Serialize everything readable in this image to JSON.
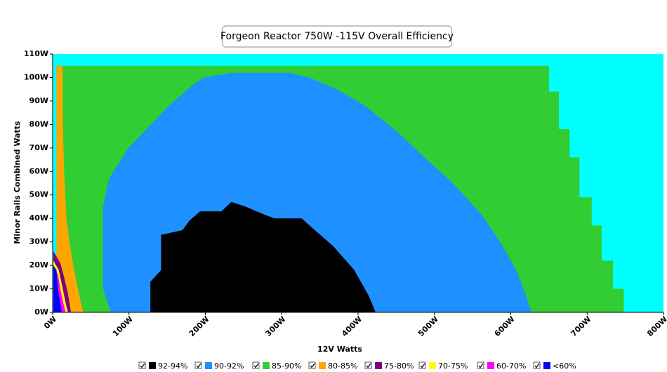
{
  "chart_data": {
    "type": "contour",
    "title": "Forgeon Reactor 750W -115V Overall Efficiency",
    "x_label": "12V Watts",
    "y_label": "Minor Rails Combined Watts",
    "xlim": [
      0,
      800
    ],
    "ylim": [
      0,
      110
    ],
    "xticks": [
      {
        "value": 0,
        "label": "0W"
      },
      {
        "value": 100,
        "label": "100W"
      },
      {
        "value": 200,
        "label": "200W"
      },
      {
        "value": 300,
        "label": "300W"
      },
      {
        "value": 400,
        "label": "400W"
      },
      {
        "value": 500,
        "label": "500W"
      },
      {
        "value": 600,
        "label": "600W"
      },
      {
        "value": 700,
        "label": "700W"
      },
      {
        "value": 800,
        "label": "800W"
      }
    ],
    "yticks": [
      {
        "value": 0,
        "label": "0W"
      },
      {
        "value": 10,
        "label": "10W"
      },
      {
        "value": 20,
        "label": "20W"
      },
      {
        "value": 30,
        "label": "30W"
      },
      {
        "value": 40,
        "label": "40W"
      },
      {
        "value": 50,
        "label": "50W"
      },
      {
        "value": 60,
        "label": "60W"
      },
      {
        "value": 70,
        "label": "70W"
      },
      {
        "value": 80,
        "label": "80W"
      },
      {
        "value": 90,
        "label": "90W"
      },
      {
        "value": 100,
        "label": "100W"
      },
      {
        "value": 110,
        "label": "110W"
      }
    ],
    "series": [
      {
        "name": "92-94%",
        "color": "#000000",
        "x": [
          128,
          128,
          142,
          142,
          170,
          179,
          193,
          221,
          234,
          253,
          267,
          290,
          326,
          340,
          368,
          395,
          414,
          423
        ],
        "values": [
          0,
          13,
          18,
          33,
          35,
          39,
          43,
          43,
          47,
          45,
          43,
          40,
          40,
          36,
          28,
          18,
          7,
          0
        ]
      },
      {
        "name": "90-92%",
        "color": "#1e90ff",
        "x": [
          76,
          66,
          66,
          74,
          99,
          129,
          152,
          184,
          198,
          234,
          280,
          310,
          336,
          372,
          409,
          451,
          487,
          524,
          561,
          586,
          607,
          619,
          627
        ],
        "values": [
          0,
          10,
          45,
          57,
          70,
          80,
          88,
          97,
          100,
          102,
          102,
          102,
          100,
          95,
          88,
          77,
          66,
          55,
          42,
          30,
          18,
          8,
          0
        ]
      },
      {
        "name": "85-90%",
        "color": "#32cd32",
        "x": [
          5,
          5,
          650,
          650,
          663,
          663,
          677,
          677,
          690,
          690,
          706,
          706,
          719,
          719,
          734,
          734,
          748,
          748
        ],
        "values": [
          0,
          105,
          105,
          94,
          94,
          78,
          78,
          66,
          66,
          49,
          49,
          37,
          37,
          22,
          22,
          10,
          10,
          0
        ]
      },
      {
        "name": "80-85%",
        "color": "#ffa500",
        "x": [
          5,
          5,
          13,
          13,
          15,
          18,
          22,
          27,
          33,
          40
        ],
        "values": [
          0,
          105,
          105,
          85,
          60,
          40,
          30,
          20,
          10,
          0
        ]
      },
      {
        "name": "75-80%",
        "color": "#800080",
        "x": [
          1,
          1,
          10,
          15,
          20,
          24
        ],
        "values": [
          0,
          26,
          21,
          15,
          8,
          0
        ]
      },
      {
        "name": "70-75%",
        "color": "#ffff00",
        "x": [
          1,
          1,
          8,
          12,
          17,
          20
        ],
        "values": [
          0,
          22,
          18,
          12,
          4,
          0
        ]
      },
      {
        "name": "60-70%",
        "color": "#ff00ff",
        "x": [
          1,
          1,
          7,
          10,
          14,
          17
        ],
        "values": [
          0,
          20,
          16,
          10,
          4,
          0
        ]
      },
      {
        "name": "<60%",
        "color": "#0000ff",
        "x": [
          1,
          1,
          5,
          7,
          10,
          12
        ],
        "values": [
          0,
          20,
          18,
          10,
          4,
          0
        ]
      }
    ]
  }
}
